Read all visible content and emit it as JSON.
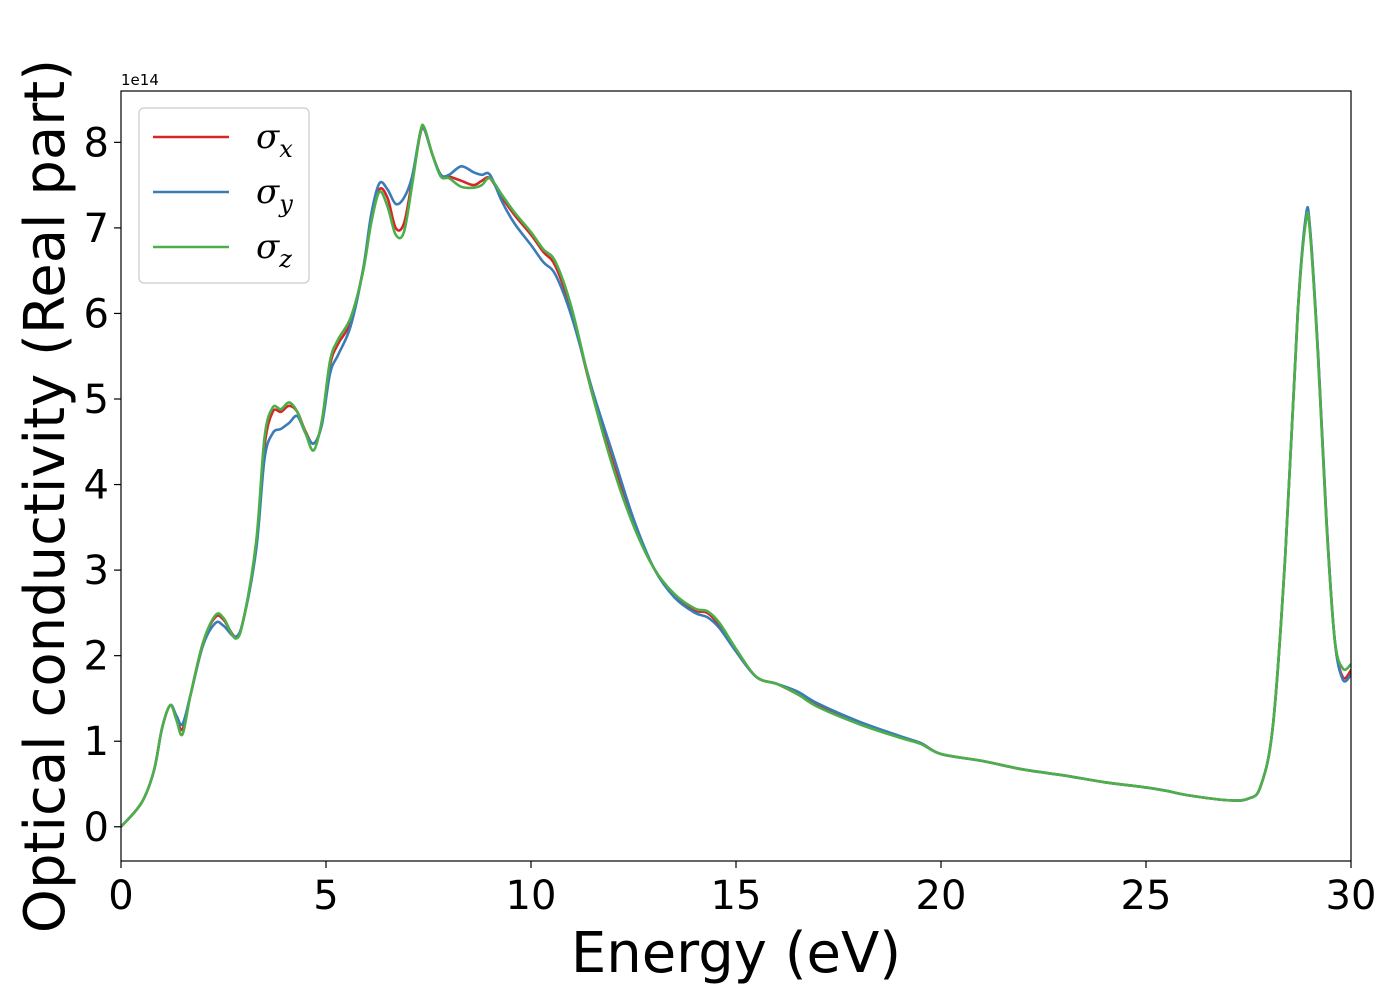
{
  "chart_data": {
    "type": "line",
    "xlabel": "Energy (eV)",
    "ylabel": "Optical conductivity (Real part)",
    "y_offset_label": "1e14",
    "y_scale_factor": 100000000000000.0,
    "xlim": [
      0,
      30
    ],
    "ylim": [
      -0.4,
      8.6
    ],
    "x_ticks": [
      0,
      5,
      10,
      15,
      20,
      25,
      30
    ],
    "x_tick_labels": [
      "0",
      "5",
      "10",
      "15",
      "20",
      "25",
      "30"
    ],
    "y_ticks": [
      0,
      1,
      2,
      3,
      4,
      5,
      6,
      7,
      8
    ],
    "y_tick_labels": [
      "0",
      "1",
      "2",
      "3",
      "4",
      "5",
      "6",
      "7",
      "8"
    ],
    "grid": false,
    "legend_position": "top-left",
    "series": [
      {
        "name": "σx",
        "legend_main": "σ",
        "legend_sub": "x",
        "color": "#d62728",
        "x": [
          0,
          0.5,
          0.8,
          1.0,
          1.2,
          1.35,
          1.5,
          1.7,
          2.0,
          2.3,
          2.5,
          2.8,
          3.0,
          3.3,
          3.5,
          3.7,
          3.9,
          4.1,
          4.3,
          4.5,
          4.7,
          4.9,
          5.1,
          5.3,
          5.6,
          5.9,
          6.1,
          6.3,
          6.5,
          6.7,
          6.9,
          7.1,
          7.3,
          7.4,
          7.6,
          7.8,
          8.0,
          8.3,
          8.6,
          8.8,
          9.0,
          9.3,
          9.6,
          10.0,
          10.3,
          10.6,
          11.0,
          11.5,
          12.0,
          12.5,
          13.0,
          13.5,
          14.0,
          14.3,
          14.6,
          15.0,
          15.5,
          16.0,
          16.5,
          17.0,
          18.0,
          19.0,
          19.5,
          20.0,
          21.0,
          22.0,
          23.0,
          24.0,
          25.0,
          25.5,
          26.0,
          27.0,
          27.5,
          27.8,
          28.1,
          28.4,
          28.7,
          28.9,
          29.0,
          29.2,
          29.4,
          29.6,
          29.8,
          30.0
        ],
        "y": [
          0.0,
          0.28,
          0.65,
          1.15,
          1.42,
          1.28,
          1.14,
          1.55,
          2.15,
          2.45,
          2.42,
          2.22,
          2.45,
          3.3,
          4.45,
          4.85,
          4.85,
          4.92,
          4.85,
          4.62,
          4.48,
          4.72,
          5.4,
          5.65,
          5.9,
          6.5,
          7.1,
          7.45,
          7.35,
          7.0,
          7.05,
          7.55,
          8.1,
          8.15,
          7.85,
          7.62,
          7.6,
          7.55,
          7.5,
          7.55,
          7.58,
          7.35,
          7.15,
          6.92,
          6.72,
          6.55,
          6.0,
          5.05,
          4.25,
          3.55,
          3.02,
          2.7,
          2.53,
          2.5,
          2.35,
          2.05,
          1.75,
          1.67,
          1.55,
          1.42,
          1.22,
          1.05,
          0.98,
          0.85,
          0.77,
          0.67,
          0.6,
          0.52,
          0.46,
          0.42,
          0.37,
          0.31,
          0.33,
          0.48,
          1.2,
          3.2,
          6.0,
          7.1,
          6.98,
          5.5,
          3.6,
          2.2,
          1.75,
          1.83
        ]
      },
      {
        "name": "σy",
        "legend_main": "σ",
        "legend_sub": "y",
        "color": "#3a7cb8",
        "x": [
          0,
          0.5,
          0.8,
          1.0,
          1.2,
          1.35,
          1.5,
          1.7,
          2.0,
          2.3,
          2.5,
          2.8,
          3.0,
          3.3,
          3.5,
          3.7,
          3.9,
          4.1,
          4.3,
          4.5,
          4.7,
          4.9,
          5.1,
          5.3,
          5.6,
          5.9,
          6.1,
          6.3,
          6.5,
          6.7,
          6.9,
          7.1,
          7.3,
          7.4,
          7.6,
          7.8,
          8.0,
          8.3,
          8.6,
          8.8,
          9.0,
          9.3,
          9.6,
          10.0,
          10.3,
          10.6,
          11.0,
          11.5,
          12.0,
          12.5,
          13.0,
          13.5,
          14.0,
          14.3,
          14.6,
          15.0,
          15.5,
          16.0,
          16.5,
          17.0,
          18.0,
          19.0,
          19.5,
          20.0,
          21.0,
          22.0,
          23.0,
          24.0,
          25.0,
          25.5,
          26.0,
          27.0,
          27.5,
          27.8,
          28.1,
          28.4,
          28.7,
          28.9,
          29.0,
          29.2,
          29.4,
          29.6,
          29.8,
          30.0
        ],
        "y": [
          0.0,
          0.28,
          0.65,
          1.15,
          1.42,
          1.3,
          1.2,
          1.55,
          2.12,
          2.38,
          2.35,
          2.22,
          2.45,
          3.25,
          4.3,
          4.6,
          4.65,
          4.72,
          4.8,
          4.6,
          4.48,
          4.7,
          5.3,
          5.52,
          5.85,
          6.5,
          7.15,
          7.52,
          7.45,
          7.28,
          7.35,
          7.6,
          8.12,
          8.15,
          7.85,
          7.62,
          7.62,
          7.72,
          7.65,
          7.62,
          7.62,
          7.3,
          7.05,
          6.8,
          6.6,
          6.45,
          5.95,
          5.1,
          4.35,
          3.6,
          3.02,
          2.68,
          2.5,
          2.45,
          2.32,
          2.05,
          1.75,
          1.67,
          1.58,
          1.44,
          1.23,
          1.06,
          0.98,
          0.85,
          0.77,
          0.67,
          0.6,
          0.52,
          0.46,
          0.42,
          0.37,
          0.31,
          0.33,
          0.48,
          1.2,
          3.2,
          6.0,
          7.14,
          7.0,
          5.5,
          3.6,
          2.2,
          1.72,
          1.78
        ]
      },
      {
        "name": "σz",
        "legend_main": "σ",
        "legend_sub": "z",
        "color": "#4daf4a",
        "x": [
          0,
          0.5,
          0.8,
          1.0,
          1.2,
          1.35,
          1.5,
          1.7,
          2.0,
          2.3,
          2.5,
          2.8,
          3.0,
          3.3,
          3.5,
          3.7,
          3.9,
          4.1,
          4.3,
          4.5,
          4.7,
          4.9,
          5.1,
          5.3,
          5.6,
          5.9,
          6.1,
          6.3,
          6.5,
          6.7,
          6.9,
          7.1,
          7.3,
          7.4,
          7.6,
          7.8,
          8.0,
          8.3,
          8.6,
          8.8,
          9.0,
          9.3,
          9.6,
          10.0,
          10.3,
          10.6,
          11.0,
          11.5,
          12.0,
          12.5,
          13.0,
          13.5,
          14.0,
          14.3,
          14.6,
          15.0,
          15.5,
          16.0,
          16.5,
          17.0,
          18.0,
          19.0,
          19.5,
          20.0,
          21.0,
          22.0,
          23.0,
          24.0,
          25.0,
          25.5,
          26.0,
          27.0,
          27.5,
          27.8,
          28.1,
          28.4,
          28.7,
          28.9,
          29.0,
          29.2,
          29.4,
          29.6,
          29.8,
          30.0
        ],
        "y": [
          0.0,
          0.28,
          0.65,
          1.15,
          1.42,
          1.25,
          1.08,
          1.55,
          2.15,
          2.47,
          2.44,
          2.2,
          2.45,
          3.35,
          4.55,
          4.9,
          4.88,
          4.96,
          4.85,
          4.6,
          4.4,
          4.75,
          5.45,
          5.7,
          5.95,
          6.48,
          7.05,
          7.42,
          7.25,
          6.92,
          6.95,
          7.5,
          8.12,
          8.17,
          7.85,
          7.6,
          7.58,
          7.48,
          7.47,
          7.5,
          7.58,
          7.38,
          7.18,
          6.95,
          6.75,
          6.6,
          6.05,
          5.05,
          4.2,
          3.52,
          3.02,
          2.72,
          2.55,
          2.52,
          2.38,
          2.08,
          1.75,
          1.67,
          1.55,
          1.4,
          1.2,
          1.04,
          0.97,
          0.85,
          0.77,
          0.67,
          0.6,
          0.52,
          0.46,
          0.42,
          0.37,
          0.31,
          0.33,
          0.48,
          1.2,
          3.2,
          5.98,
          7.08,
          6.95,
          5.45,
          3.55,
          2.2,
          1.85,
          1.9
        ]
      }
    ]
  }
}
